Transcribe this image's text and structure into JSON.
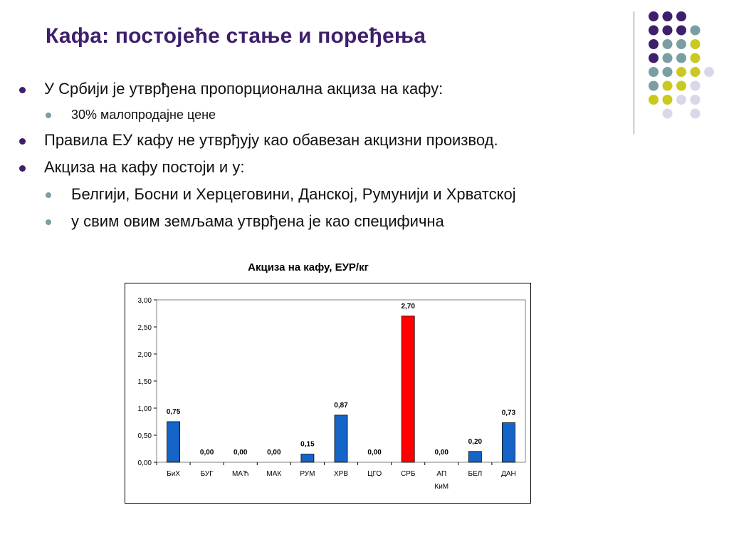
{
  "slide": {
    "title": "Кафа: постојеће стање и поређења",
    "bullets": [
      {
        "level": 1,
        "text": "У Србији је утврђена пропорционална акциза на кафу:"
      },
      {
        "level": 2,
        "text": "30% малопродајне цене",
        "small": true
      },
      {
        "level": 1,
        "text": "Правила ЕУ кафу не утврђују као обавезан акцизни производ."
      },
      {
        "level": 1,
        "text": "Акциза на кафу постоји и у:"
      },
      {
        "level": 2,
        "text": "Белгији, Босни и Херцеговини, Данској, Румунији и Хрватској"
      },
      {
        "level": 2,
        "text": "у свим овим земљама утврђена је као специфична"
      }
    ]
  },
  "decoration": {
    "colors": {
      "purple": "#3e1f6b",
      "teal": "#7a9ea4",
      "yellow": "#c9c921",
      "lavender": "#d8d8ea"
    },
    "dots": [
      [
        "purple",
        "purple",
        "purple",
        ""
      ],
      [
        "purple",
        "purple",
        "purple",
        "teal"
      ],
      [
        "purple",
        "teal",
        "teal",
        "yellow"
      ],
      [
        "purple",
        "teal",
        "teal",
        "yellow"
      ],
      [
        "teal",
        "teal",
        "yellow",
        "yellow",
        "lavender"
      ],
      [
        "teal",
        "yellow",
        "yellow",
        "lavender"
      ],
      [
        "yellow",
        "yellow",
        "lavender",
        "lavender"
      ],
      [
        "",
        "lavender",
        "",
        "lavender"
      ]
    ]
  },
  "chart_data": {
    "type": "bar",
    "title": "Акциза на кафу, ЕУР/кг",
    "categories": [
      "БиХ",
      "БУГ",
      "МАЋ",
      "МАК",
      "РУМ",
      "ХРВ",
      "ЦГО",
      "СРБ",
      "АП\nКиМ",
      "БЕЛ",
      "ДАН"
    ],
    "values": [
      0.75,
      0.0,
      0.0,
      0.0,
      0.15,
      0.87,
      0.0,
      2.7,
      0.0,
      0.2,
      0.73
    ],
    "value_labels": [
      "0,75",
      "0,00",
      "0,00",
      "0,00",
      "0,15",
      "0,87",
      "0,00",
      "2,70",
      "0,00",
      "0,20",
      "0,73"
    ],
    "highlight_index": 7,
    "colors": {
      "default": "#1565c8",
      "highlight": "#ff0000"
    },
    "ylim": [
      0,
      3.0
    ],
    "yticks": [
      "0,00",
      "0,50",
      "1,00",
      "1,50",
      "2,00",
      "2,50",
      "3,00"
    ],
    "grid": false,
    "legend": "none"
  }
}
